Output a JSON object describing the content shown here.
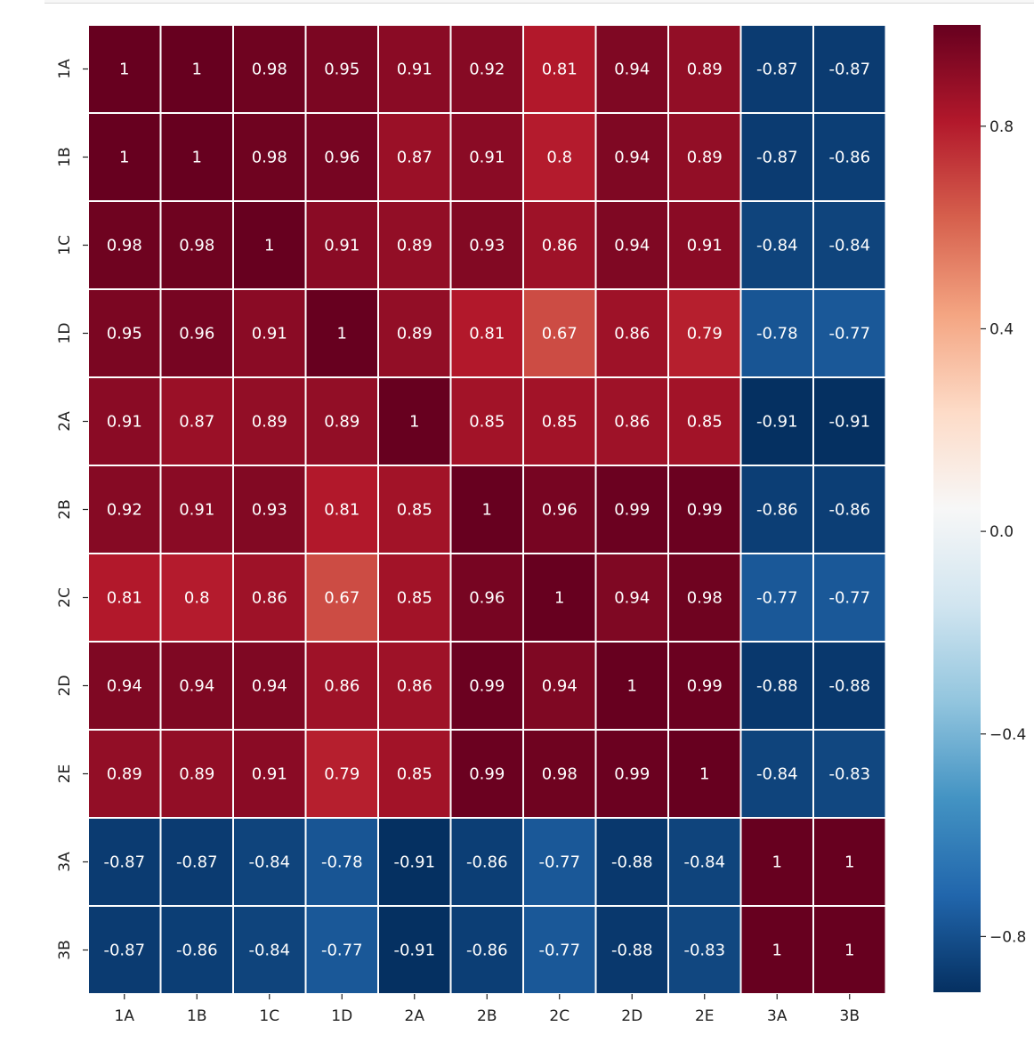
{
  "chart_data": {
    "type": "heatmap",
    "title": "",
    "xlabel": "",
    "ylabel": "",
    "labels": [
      "1A",
      "1B",
      "1C",
      "1D",
      "2A",
      "2B",
      "2C",
      "2D",
      "2E",
      "3A",
      "3B"
    ],
    "x_tick_labels": [
      "1A",
      "1B",
      "1C",
      "1D",
      "2A",
      "2B",
      "2C",
      "2D",
      "2E",
      "3A",
      "3B"
    ],
    "y_tick_labels": [
      "1A",
      "1B",
      "1C",
      "1D",
      "2A",
      "2B",
      "2C",
      "2D",
      "2E",
      "3A",
      "3B"
    ],
    "values": [
      [
        1,
        1,
        0.98,
        0.95,
        0.91,
        0.92,
        0.81,
        0.94,
        0.89,
        -0.87,
        -0.87
      ],
      [
        1,
        1,
        0.98,
        0.96,
        0.87,
        0.91,
        0.8,
        0.94,
        0.89,
        -0.87,
        -0.86
      ],
      [
        0.98,
        0.98,
        1,
        0.91,
        0.89,
        0.93,
        0.86,
        0.94,
        0.91,
        -0.84,
        -0.84
      ],
      [
        0.95,
        0.96,
        0.91,
        1,
        0.89,
        0.81,
        0.67,
        0.86,
        0.79,
        -0.78,
        -0.77
      ],
      [
        0.91,
        0.87,
        0.89,
        0.89,
        1,
        0.85,
        0.85,
        0.86,
        0.85,
        -0.91,
        -0.91
      ],
      [
        0.92,
        0.91,
        0.93,
        0.81,
        0.85,
        1,
        0.96,
        0.99,
        0.99,
        -0.86,
        -0.86
      ],
      [
        0.81,
        0.8,
        0.86,
        0.67,
        0.85,
        0.96,
        1,
        0.94,
        0.98,
        -0.77,
        -0.77
      ],
      [
        0.94,
        0.94,
        0.94,
        0.86,
        0.86,
        0.99,
        0.94,
        1,
        0.99,
        -0.88,
        -0.88
      ],
      [
        0.89,
        0.89,
        0.91,
        0.79,
        0.85,
        0.99,
        0.98,
        0.99,
        1,
        -0.84,
        -0.83
      ],
      [
        -0.87,
        -0.87,
        -0.84,
        -0.78,
        -0.91,
        -0.86,
        -0.77,
        -0.88,
        -0.84,
        1,
        1
      ],
      [
        -0.87,
        -0.86,
        -0.84,
        -0.77,
        -0.91,
        -0.86,
        -0.77,
        -0.88,
        -0.83,
        1,
        1
      ]
    ],
    "annotations": true,
    "colormap": "RdBu_r",
    "vmin": -0.91,
    "vmax": 1,
    "colorbar": {
      "ticks": [
        0.8,
        0.4,
        0.0,
        -0.4,
        -0.8
      ],
      "tick_labels": [
        "0.8",
        "0.4",
        "0.0",
        "−0.4",
        "−0.8"
      ],
      "placement": "right"
    },
    "colormap_stops": [
      "#053061",
      "#2166ac",
      "#4393c3",
      "#92c5de",
      "#d1e5f0",
      "#f7f7f7",
      "#fddbc7",
      "#f4a582",
      "#d6604d",
      "#b2182b",
      "#67001f"
    ],
    "annotation_color": "#ffffff",
    "grid_color": "#ffffff"
  }
}
